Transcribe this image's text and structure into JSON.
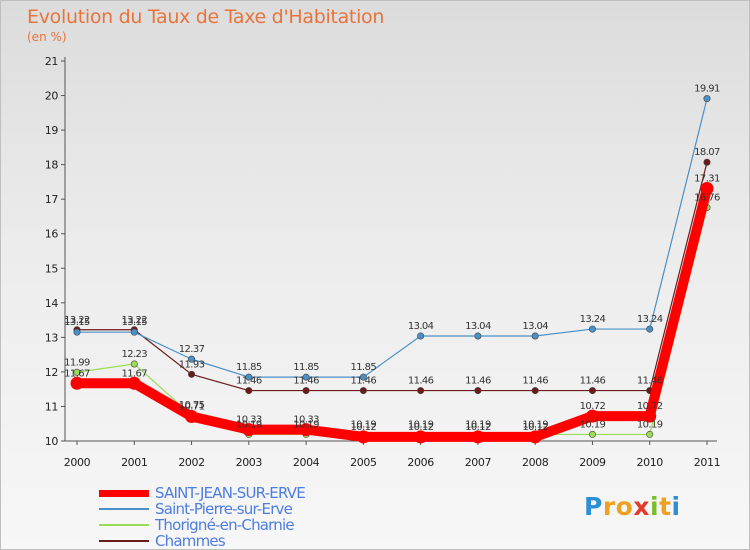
{
  "chart_data": {
    "type": "line",
    "title": "Evolution du Taux de Taxe d'Habitation",
    "subtitle": "(en %)",
    "x": [
      "2000",
      "2001",
      "2002",
      "2003",
      "2004",
      "2005",
      "2006",
      "2007",
      "2008",
      "2009",
      "2010",
      "2011"
    ],
    "ylim": [
      10,
      21
    ],
    "yticks": [
      "10",
      "11",
      "12",
      "13",
      "14",
      "15",
      "16",
      "17",
      "18",
      "19",
      "20",
      "21"
    ],
    "grid": "none",
    "legend_placement": "bottom-left",
    "series": [
      {
        "name": "SAINT-JEAN-SUR-ERVE",
        "color": "#ff0000",
        "values": [
          11.67,
          11.67,
          10.71,
          10.33,
          10.33,
          10.12,
          10.12,
          10.12,
          10.12,
          10.72,
          10.72,
          17.31
        ],
        "labels": [
          "11.67",
          "11.67",
          "10.71",
          "10.33",
          "10.33",
          "10.12",
          "10.12",
          "10.12",
          "10.12",
          "10.72",
          "10.72",
          "17.31"
        ]
      },
      {
        "name": "Saint-Pierre-sur-Erve",
        "color": "#4a90c8",
        "values": [
          13.15,
          13.15,
          12.37,
          11.85,
          11.85,
          11.85,
          13.04,
          13.04,
          13.04,
          13.24,
          13.24,
          19.91
        ],
        "labels": [
          "13.15",
          "13.15",
          "12.37",
          "11.85",
          "11.85",
          "11.85",
          "13.04",
          "13.04",
          "13.04",
          "13.24",
          "13.24",
          "19.91"
        ]
      },
      {
        "name": "Thorigné-en-Charnie",
        "color": "#99dd55",
        "values": [
          11.99,
          12.23,
          10.75,
          10.19,
          10.19,
          10.19,
          10.19,
          10.19,
          10.19,
          10.19,
          10.19,
          16.76
        ],
        "labels": [
          "11.99",
          "12.23",
          "10.75",
          "10.19",
          "10.19",
          "10.19",
          "10.19",
          "10.19",
          "10.19",
          "10.19",
          "10.19",
          "16.76"
        ]
      },
      {
        "name": "Chammes",
        "color": "#6b1a1a",
        "values": [
          13.22,
          13.22,
          11.93,
          11.46,
          11.46,
          11.46,
          11.46,
          11.46,
          11.46,
          11.46,
          11.46,
          18.07
        ],
        "labels": [
          "13.22",
          "13.22",
          "11.93",
          "11.46",
          "11.46",
          "11.46",
          "11.46",
          "11.46",
          "11.46",
          "11.46",
          "11.46",
          "18.07"
        ]
      }
    ]
  },
  "logo": {
    "letters": [
      "P",
      "r",
      "o",
      "x",
      "i",
      "t",
      "i"
    ],
    "colors": [
      "#2a8fd6",
      "#f0a020",
      "#f0a020",
      "#e23b2e",
      "#7abf2a",
      "#f0a020",
      "#2a8fd6"
    ]
  }
}
